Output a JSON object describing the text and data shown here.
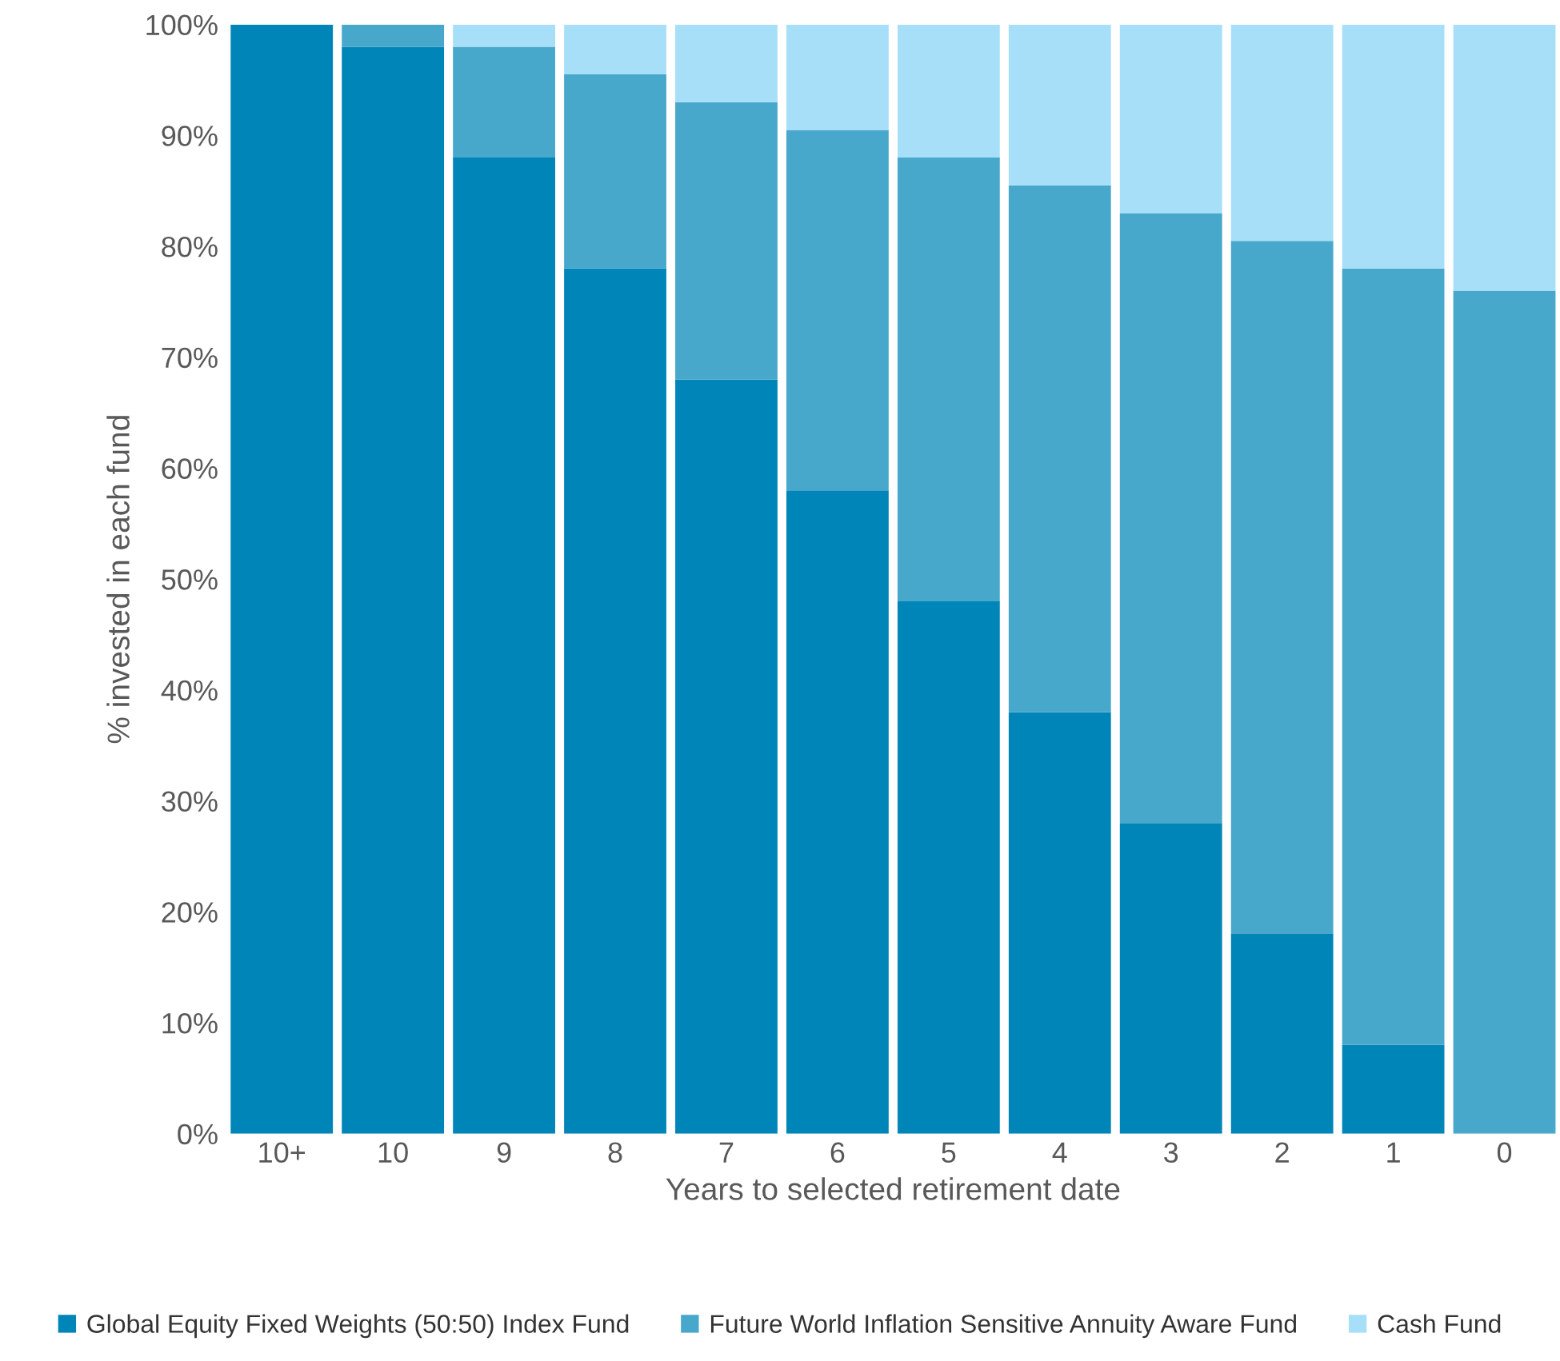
{
  "chart_data": {
    "type": "bar",
    "stacked": true,
    "xlabel": "Years to selected retirement date",
    "ylabel": "% invested in each fund",
    "categories": [
      "10+",
      "10",
      "9",
      "8",
      "7",
      "6",
      "5",
      "4",
      "3",
      "2",
      "1",
      "0"
    ],
    "series": [
      {
        "name": "Global Equity Fixed Weights (50:50) Index Fund",
        "color": "#0085b8",
        "values": [
          100,
          98,
          88,
          78,
          68,
          58,
          48,
          38,
          28,
          18,
          8,
          0
        ]
      },
      {
        "name": "Future World Inflation Sensitive Annuity Aware Fund",
        "color": "#48a8cc",
        "values": [
          0,
          2,
          10,
          17.5,
          25,
          32.5,
          40,
          47.5,
          55,
          62.5,
          70,
          76
        ]
      },
      {
        "name": "Cash Fund",
        "color": "#a8dff8",
        "values": [
          0,
          0,
          2,
          4.5,
          7,
          9.5,
          12,
          14.5,
          17,
          19.5,
          22,
          24
        ]
      }
    ],
    "ylim": [
      0,
      100
    ],
    "yticks": [
      {
        "value": 0,
        "label": "0%"
      },
      {
        "value": 10,
        "label": "10%"
      },
      {
        "value": 20,
        "label": "20%"
      },
      {
        "value": 30,
        "label": "30%"
      },
      {
        "value": 40,
        "label": "40%"
      },
      {
        "value": 50,
        "label": "50%"
      },
      {
        "value": 60,
        "label": "60%"
      },
      {
        "value": 70,
        "label": "70%"
      },
      {
        "value": 80,
        "label": "80%"
      },
      {
        "value": 90,
        "label": "90%"
      },
      {
        "value": 100,
        "label": "100%"
      }
    ],
    "grid": false,
    "legend": "bottom"
  }
}
